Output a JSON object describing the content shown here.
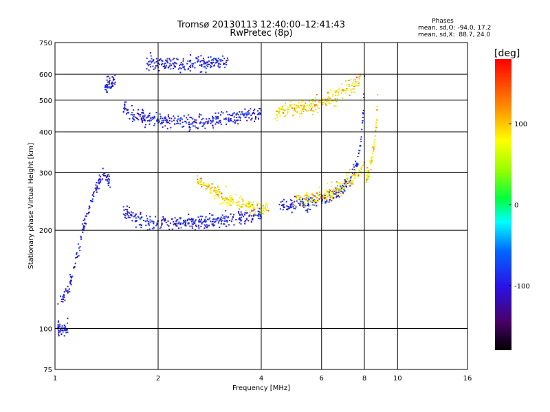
{
  "chart_data": {
    "type": "scatter",
    "title": "Tromsø 20130113 12:40:00–12:41:43",
    "subtitle": "RwPretec (8p)",
    "xlabel": "Frequency [MHz]",
    "ylabel": "Stationary phase Virtual Height [km]",
    "x_scale": "log",
    "y_scale": "log",
    "xlim": [
      1,
      16
    ],
    "ylim": [
      75,
      750
    ],
    "x_ticks": [
      1,
      2,
      4,
      6,
      8,
      10,
      16
    ],
    "x_tick_labels": [
      "1",
      "2",
      "4",
      "6",
      "8",
      "10",
      "16"
    ],
    "y_ticks": [
      75,
      100,
      200,
      300,
      400,
      500,
      600,
      750
    ],
    "y_tick_labels": [
      "75",
      "100",
      "200",
      "300",
      "400",
      "500",
      "600",
      "750"
    ],
    "grid": true,
    "stats": {
      "header": "Phases",
      "o_line": "mean, sd,O: -94.0, 17.2",
      "x_line": "mean, sd,X:  88.7, 24.0"
    },
    "colorbar": {
      "label": "[deg]",
      "range": [
        -180,
        180
      ],
      "ticks": [
        100,
        0,
        -100
      ],
      "tick_labels": [
        "100",
        "0",
        "-100"
      ]
    },
    "series": [
      {
        "component": "O-mode",
        "phase_mean_deg": -94.0,
        "phase_sd_deg": 17.2,
        "segments": [
          {
            "x": [
              1.02,
              1.09
            ],
            "y": [
              100,
              100
            ]
          },
          {
            "x": [
              1.02,
              1.09,
              1.15,
              1.22,
              1.3,
              1.38,
              1.45
            ],
            "y": [
              120,
              130,
              160,
              210,
              260,
              300,
              280
            ]
          },
          {
            "x": [
              1.58,
              1.7,
              1.8,
              1.9,
              2.0,
              2.3,
              2.7,
              3.0,
              3.3,
              3.7,
              4.0
            ],
            "y": [
              230,
              218,
              213,
              212,
              211,
              211,
              212,
              215,
              218,
              222,
              226
            ]
          },
          {
            "x": [
              1.58,
              1.7,
              1.9,
              2.1,
              2.4,
              2.8,
              3.2,
              3.6,
              4.0
            ],
            "y": [
              470,
              450,
              435,
              428,
              428,
              432,
              440,
              448,
              455
            ]
          },
          {
            "x": [
              4.5,
              5.0,
              5.5,
              6.0,
              6.5,
              7.0,
              7.4,
              7.7,
              7.85,
              7.95,
              8.0
            ],
            "y": [
              235,
              238,
              242,
              248,
              257,
              272,
              292,
              330,
              390,
              470,
              560
            ]
          },
          {
            "x": [
              1.85,
              1.95,
              2.05,
              2.4,
              2.6,
              2.9,
              3.2
            ],
            "y": [
              650,
              648,
              646,
              646,
              647,
              650,
              655
            ]
          },
          {
            "x": [
              1.4,
              1.45,
              1.5
            ],
            "y": [
              545,
              560,
              575
            ]
          }
        ]
      },
      {
        "component": "X-mode",
        "phase_mean_deg": 88.7,
        "phase_sd_deg": 24.0,
        "segments": [
          {
            "x": [
              2.6,
              2.8,
              3.0,
              3.2,
              3.5,
              3.8,
              4.2
            ],
            "y": [
              285,
              270,
              260,
              248,
              240,
              235,
              233
            ]
          },
          {
            "x": [
              5.0,
              5.5,
              6.0,
              6.5,
              7.0,
              7.5,
              7.8,
              8.0
            ],
            "y": [
              247,
              250,
              255,
              262,
              275,
              290,
              305,
              320
            ]
          },
          {
            "x": [
              8.1,
              8.2,
              8.4,
              8.6,
              8.7,
              8.75
            ],
            "y": [
              290,
              300,
              330,
              380,
              450,
              520
            ]
          },
          {
            "x": [
              4.4,
              5.0,
              5.6,
              6.2,
              6.8,
              7.4,
              7.8
            ],
            "y": [
              460,
              470,
              480,
              500,
              520,
              555,
              590
            ]
          }
        ]
      }
    ]
  }
}
